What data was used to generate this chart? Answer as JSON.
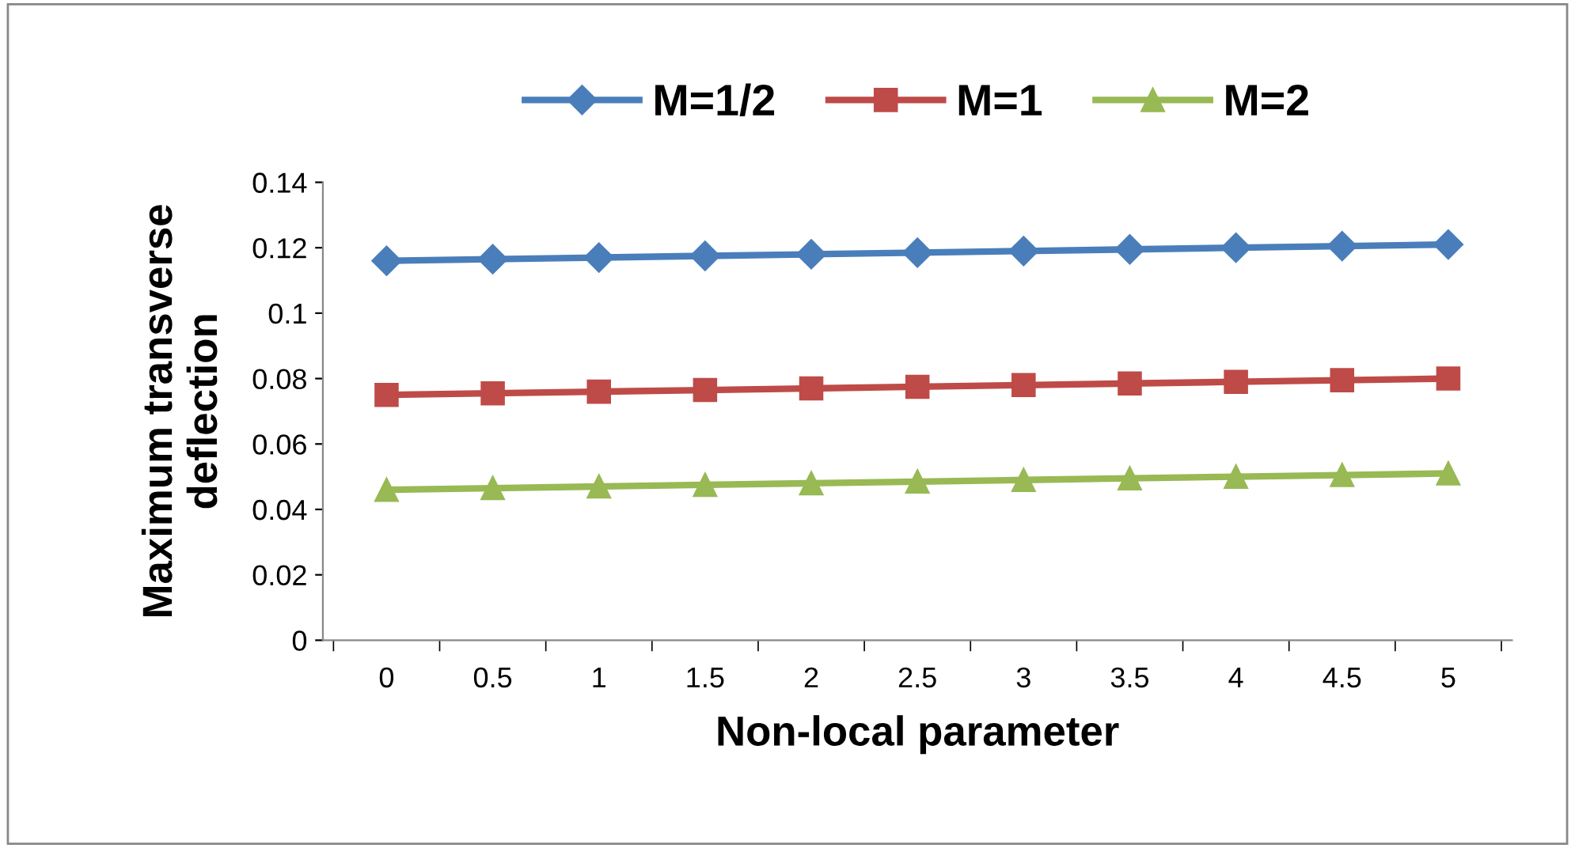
{
  "chart_data": {
    "type": "line",
    "xlabel": "Non-local parameter",
    "ylabel": "Maximum transverse\ndeflection",
    "categories": [
      "0",
      "0.5",
      "1",
      "1.5",
      "2",
      "2.5",
      "3",
      "3.5",
      "4",
      "4.5",
      "5"
    ],
    "series": [
      {
        "name": "M=1/2",
        "color": "#4a7ebb",
        "marker": "diamond",
        "values": [
          0.116,
          0.1165,
          0.117,
          0.1175,
          0.118,
          0.1185,
          0.119,
          0.1195,
          0.12,
          0.1205,
          0.121
        ]
      },
      {
        "name": "M=1",
        "color": "#be4b48",
        "marker": "square",
        "values": [
          0.075,
          0.0755,
          0.076,
          0.0765,
          0.077,
          0.0775,
          0.078,
          0.0785,
          0.079,
          0.0795,
          0.08
        ]
      },
      {
        "name": "M=2",
        "color": "#98b954",
        "marker": "triangle",
        "values": [
          0.046,
          0.0465,
          0.047,
          0.0475,
          0.048,
          0.0485,
          0.049,
          0.0495,
          0.05,
          0.0505,
          0.051
        ]
      }
    ],
    "ylim": [
      0,
      0.14
    ],
    "yticks": [
      0,
      0.02,
      0.04,
      0.06,
      0.08,
      0.1,
      0.12,
      0.14
    ],
    "grid": false,
    "legend": "top",
    "line_style": "solid"
  }
}
